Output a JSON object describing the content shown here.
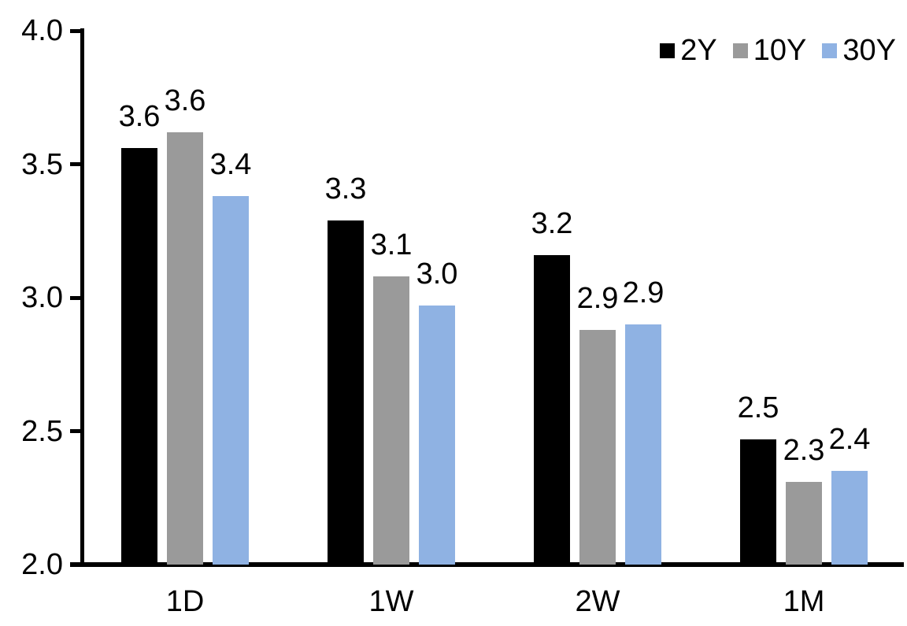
{
  "chart_data": {
    "type": "bar",
    "title": "",
    "xlabel": "",
    "ylabel": "",
    "categories": [
      "1D",
      "1W",
      "2W",
      "1M"
    ],
    "series": [
      {
        "name": "2Y",
        "color": "#000000",
        "values": [
          3.6,
          3.3,
          3.2,
          2.5
        ],
        "data_labels": [
          "3.6",
          "3.3",
          "3.2",
          "2.5"
        ],
        "values_precise": [
          3.56,
          3.29,
          3.16,
          2.47
        ]
      },
      {
        "name": "10Y",
        "color": "#9A9A9A",
        "values": [
          3.6,
          3.1,
          2.9,
          2.3
        ],
        "data_labels": [
          "3.6",
          "3.1",
          "2.9",
          "2.3"
        ],
        "values_precise": [
          3.62,
          3.08,
          2.88,
          2.31
        ]
      },
      {
        "name": "30Y",
        "color": "#8FB2E3",
        "values": [
          3.4,
          3.0,
          2.9,
          2.4
        ],
        "data_labels": [
          "3.4",
          "3.0",
          "2.9",
          "2.4"
        ],
        "values_precise": [
          3.38,
          2.97,
          2.9,
          2.35
        ]
      }
    ],
    "ylim": [
      2.0,
      4.0
    ],
    "yticks": [
      4.0,
      3.5,
      3.0,
      2.5,
      2.0
    ],
    "ytick_labels": [
      "4.0",
      "3.5",
      "3.0",
      "2.5",
      "2.0"
    ],
    "legend": {
      "position": "top-right",
      "entries": [
        "2Y",
        "10Y",
        "30Y"
      ]
    },
    "grid": false,
    "data_labels": true
  },
  "style": {
    "background": "#FFFFFF",
    "axis_color": "#000000",
    "text_color": "#000000"
  }
}
